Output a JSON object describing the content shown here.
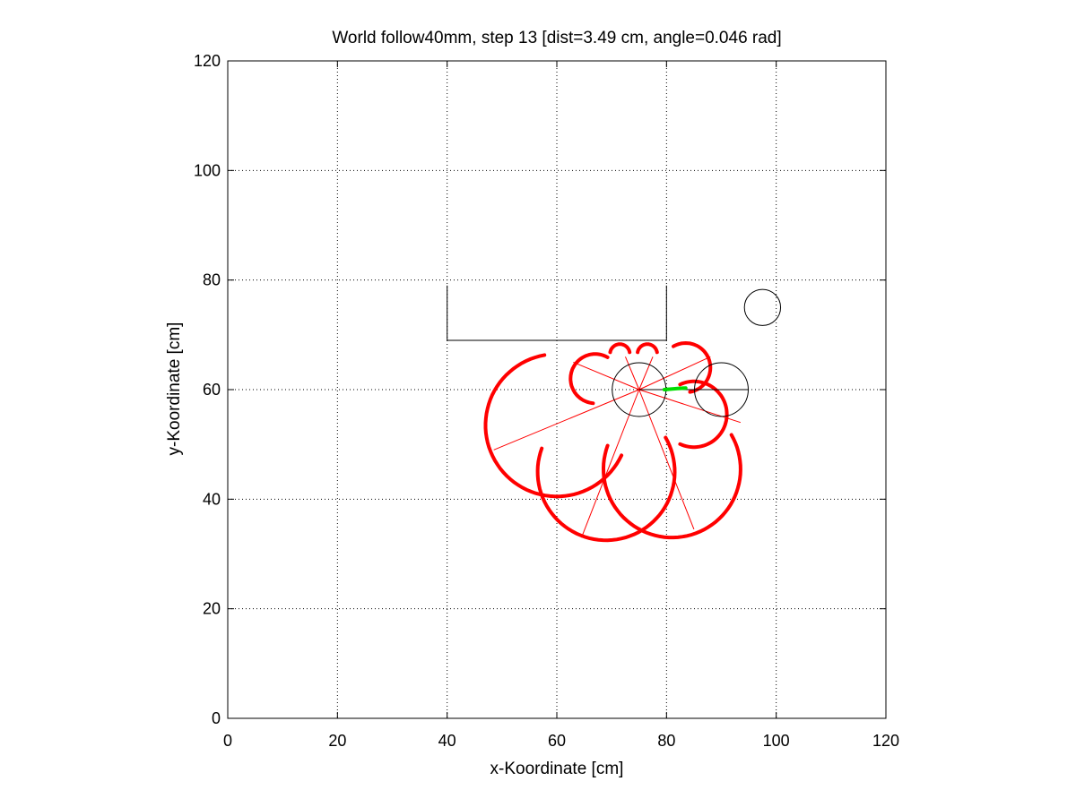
{
  "chart_data": {
    "type": "scatter",
    "title": "World follow40mm, step 13 [dist=3.49 cm, angle=0.046 rad]",
    "xlabel": "x-Koordinate [cm]",
    "ylabel": "y-Koordinate [cm]",
    "xlim": [
      0,
      120
    ],
    "ylim": [
      0,
      120
    ],
    "xticks": [
      "0",
      "20",
      "40",
      "60",
      "80",
      "100",
      "120"
    ],
    "yticks": [
      "0",
      "20",
      "40",
      "60",
      "80",
      "100",
      "120"
    ],
    "grid": true,
    "colors": {
      "sensor": "#ff0000",
      "robot": "#000000",
      "path": "#00dd00"
    },
    "obstacles": {
      "wall_polyline": [
        [
          40,
          79
        ],
        [
          40,
          69
        ],
        [
          80,
          69
        ],
        [
          80,
          79
        ]
      ],
      "circles": [
        {
          "cx": 97.5,
          "cy": 75,
          "r": 3.3
        }
      ]
    },
    "robot": {
      "x": 75,
      "y": 60,
      "r": 4.9,
      "heading_line": [
        [
          75,
          60
        ],
        [
          95,
          60
        ]
      ]
    },
    "target": {
      "x": 90,
      "y": 60,
      "r": 4.9
    },
    "path": [
      [
        79.6,
        60.0
      ],
      [
        82.0,
        60.2
      ],
      [
        83.5,
        60.3
      ]
    ],
    "sensor_rays": [
      {
        "x1": 75,
        "y1": 60,
        "x2": 48.5,
        "y2": 49
      },
      {
        "x1": 75,
        "y1": 60,
        "x2": 64.5,
        "y2": 33
      },
      {
        "x1": 75,
        "y1": 60,
        "x2": 85,
        "y2": 34.5
      },
      {
        "x1": 75,
        "y1": 60,
        "x2": 93.5,
        "y2": 54
      },
      {
        "x1": 75,
        "y1": 60,
        "x2": 88,
        "y2": 66
      },
      {
        "x1": 75,
        "y1": 60,
        "x2": 63,
        "y2": 65
      },
      {
        "x1": 75,
        "y1": 60,
        "x2": 72.5,
        "y2": 66
      },
      {
        "x1": 75,
        "y1": 60,
        "x2": 77.5,
        "y2": 66
      }
    ],
    "sensor_arcs": [
      {
        "cx": 60,
        "cy": 53.5,
        "r": 13.0,
        "start_deg": 100,
        "end_deg": 335
      },
      {
        "cx": 69,
        "cy": 45,
        "r": 12.5,
        "start_deg": 160,
        "end_deg": 390
      },
      {
        "cx": 81,
        "cy": 45.5,
        "r": 12.5,
        "start_deg": 160,
        "end_deg": 390
      },
      {
        "cx": 85,
        "cy": 55.5,
        "r": 6.0,
        "start_deg": -115,
        "end_deg": 115
      },
      {
        "cx": 67,
        "cy": 62,
        "r": 4.5,
        "start_deg": 60,
        "end_deg": 265
      },
      {
        "cx": 83.5,
        "cy": 64,
        "r": 4.5,
        "start_deg": -80,
        "end_deg": 120
      },
      {
        "cx": 71.5,
        "cy": 66.5,
        "r": 1.8,
        "start_deg": 10,
        "end_deg": 170
      },
      {
        "cx": 76.5,
        "cy": 66.5,
        "r": 1.8,
        "start_deg": 10,
        "end_deg": 170
      }
    ]
  }
}
